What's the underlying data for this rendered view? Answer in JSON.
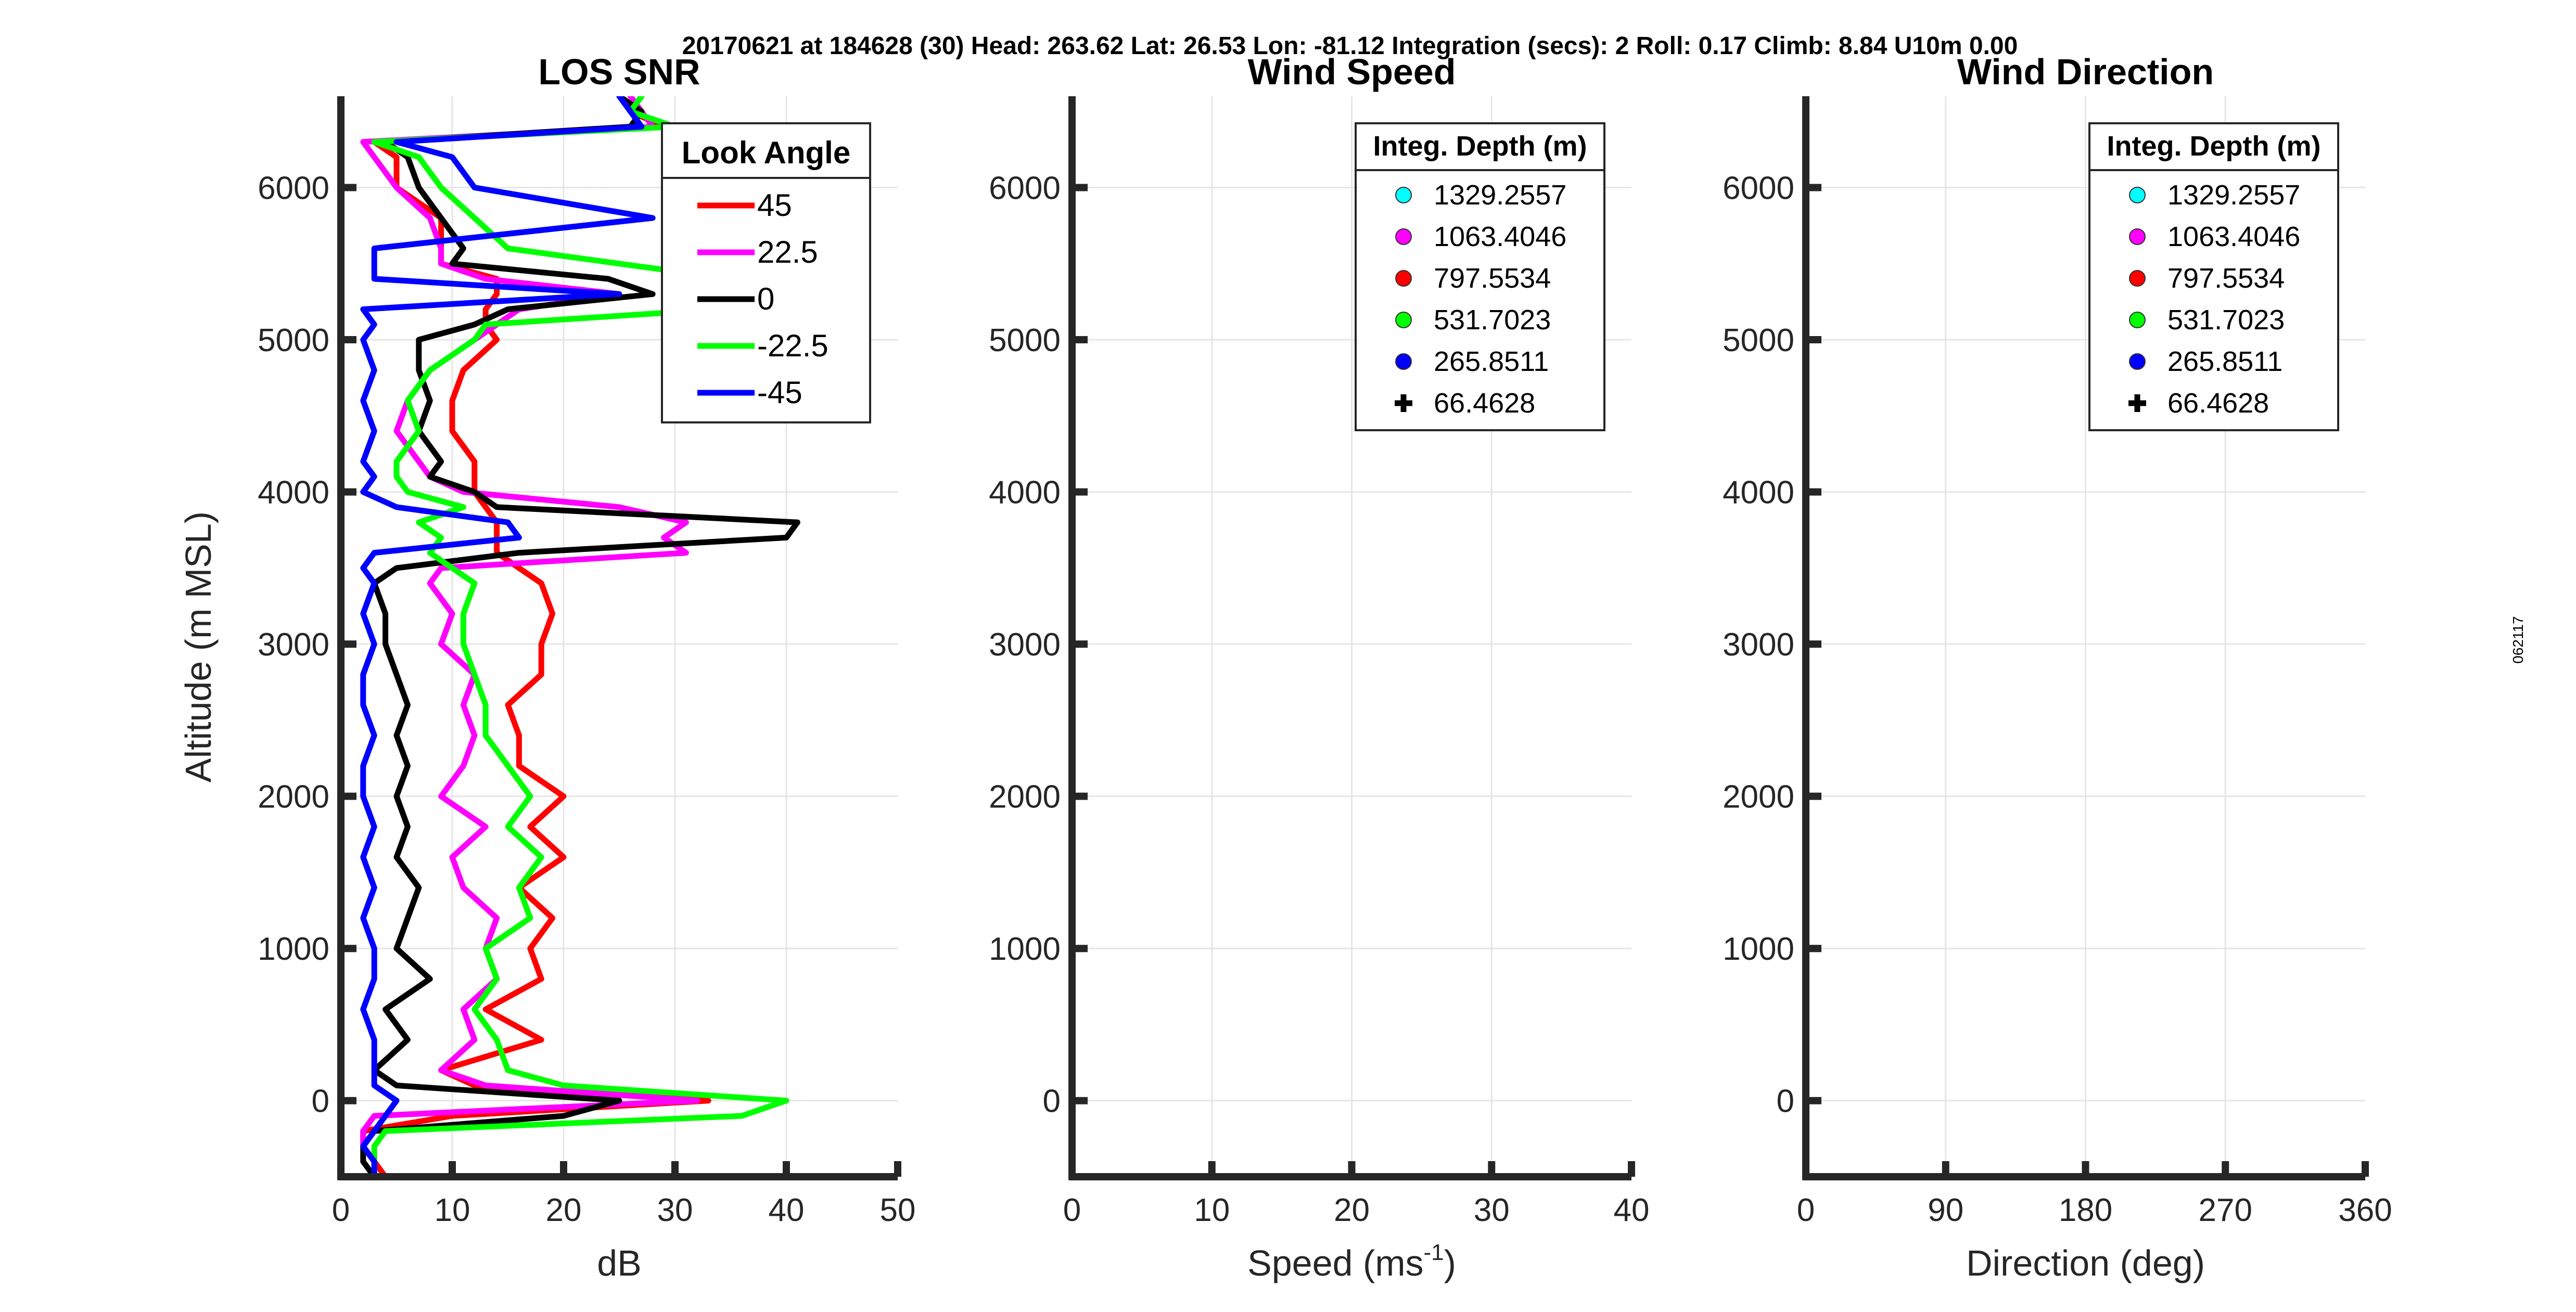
{
  "suptitle": "20170621 at 184628 (30)  Head: 263.62  Lat: 26.53  Lon: -81.12  Integration (secs): 2  Roll: 0.17  Climb: 8.84  U10m 0.00",
  "side_label": "062117",
  "chart_data": [
    {
      "type": "line",
      "title": "LOS SNR",
      "xlabel": "dB",
      "ylabel": "Altitude (m MSL)",
      "xlim": [
        0,
        50
      ],
      "ylim": [
        -500,
        6600
      ],
      "xticks": [
        "0",
        "10",
        "20",
        "30",
        "40",
        "50"
      ],
      "yticks": [
        "0",
        "1000",
        "2000",
        "3000",
        "4000",
        "5000",
        "6000"
      ],
      "grid": true,
      "legend": {
        "title": "Look Angle",
        "placement": "top-right"
      },
      "y": [
        -500,
        -400,
        -300,
        -200,
        -100,
        0,
        100,
        200,
        400,
        600,
        800,
        1000,
        1200,
        1400,
        1600,
        1800,
        2000,
        2200,
        2400,
        2600,
        2800,
        3000,
        3200,
        3400,
        3500,
        3600,
        3700,
        3800,
        3900,
        4000,
        4100,
        4200,
        4400,
        4600,
        4800,
        5000,
        5100,
        5200,
        5300,
        5400,
        5500,
        5600,
        5800,
        6000,
        6200,
        6300,
        6400,
        6500,
        6600
      ],
      "series": [
        {
          "name": "45",
          "color": "#ff0000",
          "x": [
            4,
            3,
            2,
            2,
            10,
            33,
            12,
            9,
            18,
            13,
            18,
            17,
            19,
            16,
            20,
            17,
            20,
            16,
            16,
            15,
            18,
            18,
            19,
            18,
            16,
            14,
            14,
            14,
            13,
            12,
            12,
            12,
            10,
            10,
            11,
            14,
            13,
            13,
            14,
            14,
            9,
            9,
            9,
            5,
            5,
            3,
            29,
            26,
            27
          ]
        },
        {
          "name": "22.5",
          "color": "#ff00ff",
          "x": [
            3,
            3,
            2,
            2,
            3,
            32,
            13,
            9,
            12,
            11,
            14,
            13,
            14,
            11,
            10,
            13,
            9,
            11,
            12,
            11,
            12,
            9,
            10,
            8,
            9,
            31,
            29,
            31,
            25,
            11,
            8,
            7,
            5,
            6,
            8,
            12,
            14,
            16,
            25,
            13,
            9,
            9,
            8,
            5,
            3,
            2,
            28,
            27,
            26
          ]
        },
        {
          "name": "0",
          "color": "#000000",
          "x": [
            3,
            2,
            2,
            3,
            20,
            25,
            5,
            3,
            6,
            4,
            8,
            5,
            6,
            7,
            5,
            6,
            5,
            6,
            5,
            6,
            5,
            4,
            4,
            3,
            5,
            16,
            40,
            41,
            14,
            12,
            8,
            9,
            7,
            8,
            7,
            7,
            12,
            15,
            28,
            24,
            10,
            11,
            9,
            7,
            6,
            4,
            26,
            27,
            25
          ]
        },
        {
          "name": "-22.5",
          "color": "#00ff00",
          "x": [
            3,
            3,
            3,
            4,
            36,
            40,
            20,
            15,
            14,
            12,
            14,
            13,
            17,
            16,
            18,
            15,
            17,
            15,
            13,
            13,
            12,
            11,
            11,
            12,
            10,
            8,
            9,
            7,
            11,
            6,
            5,
            5,
            7,
            6,
            8,
            12,
            13,
            34,
            31,
            35,
            25,
            15,
            12,
            9,
            7,
            3,
            30,
            26,
            27
          ]
        },
        {
          "name": "-45",
          "color": "#0000ff",
          "x": [
            3,
            3,
            2,
            3,
            4,
            5,
            3,
            3,
            3,
            2,
            3,
            3,
            2,
            3,
            2,
            3,
            2,
            2,
            3,
            2,
            2,
            3,
            2,
            3,
            2,
            3,
            16,
            15,
            5,
            2,
            3,
            2,
            3,
            2,
            3,
            2,
            3,
            2,
            25,
            3,
            3,
            3,
            28,
            12,
            10,
            5,
            27,
            26,
            25
          ]
        }
      ]
    },
    {
      "type": "scatter",
      "title": "Wind Speed",
      "xlabel": "Speed (ms",
      "xlabel_sup": "-1",
      "xlabel_end": ")",
      "xlim": [
        0,
        40
      ],
      "ylim": [
        -500,
        6600
      ],
      "xticks": [
        "0",
        "10",
        "20",
        "30",
        "40"
      ],
      "yticks": [
        "0",
        "1000",
        "2000",
        "3000",
        "4000",
        "5000",
        "6000"
      ],
      "grid": true,
      "legend": {
        "title": "Integ. Depth (m)",
        "placement": "top-right"
      },
      "series": [
        {
          "name": "1329.2557",
          "color": "#00ffff",
          "marker": "circle",
          "points": []
        },
        {
          "name": "1063.4046",
          "color": "#ff00ff",
          "marker": "circle",
          "points": []
        },
        {
          "name": "797.5534",
          "color": "#ff0000",
          "marker": "circle",
          "points": []
        },
        {
          "name": "531.7023",
          "color": "#00ff00",
          "marker": "circle",
          "points": []
        },
        {
          "name": "265.8511",
          "color": "#0000ff",
          "marker": "circle",
          "points": []
        },
        {
          "name": "66.4628",
          "color": "#000000",
          "marker": "plus",
          "points": []
        }
      ]
    },
    {
      "type": "scatter",
      "title": "Wind Direction",
      "xlabel": "Direction (deg)",
      "xlim": [
        0,
        360
      ],
      "ylim": [
        -500,
        6600
      ],
      "xticks": [
        "0",
        "90",
        "180",
        "270",
        "360"
      ],
      "yticks": [
        "0",
        "1000",
        "2000",
        "3000",
        "4000",
        "5000",
        "6000"
      ],
      "grid": true,
      "legend": {
        "title": "Integ. Depth (m)",
        "placement": "top-right"
      },
      "series": [
        {
          "name": "1329.2557",
          "color": "#00ffff",
          "marker": "circle",
          "points": []
        },
        {
          "name": "1063.4046",
          "color": "#ff00ff",
          "marker": "circle",
          "points": []
        },
        {
          "name": "797.5534",
          "color": "#ff0000",
          "marker": "circle",
          "points": []
        },
        {
          "name": "531.7023",
          "color": "#00ff00",
          "marker": "circle",
          "points": []
        },
        {
          "name": "265.8511",
          "color": "#0000ff",
          "marker": "circle",
          "points": []
        },
        {
          "name": "66.4628",
          "color": "#000000",
          "marker": "plus",
          "points": []
        }
      ]
    }
  ]
}
